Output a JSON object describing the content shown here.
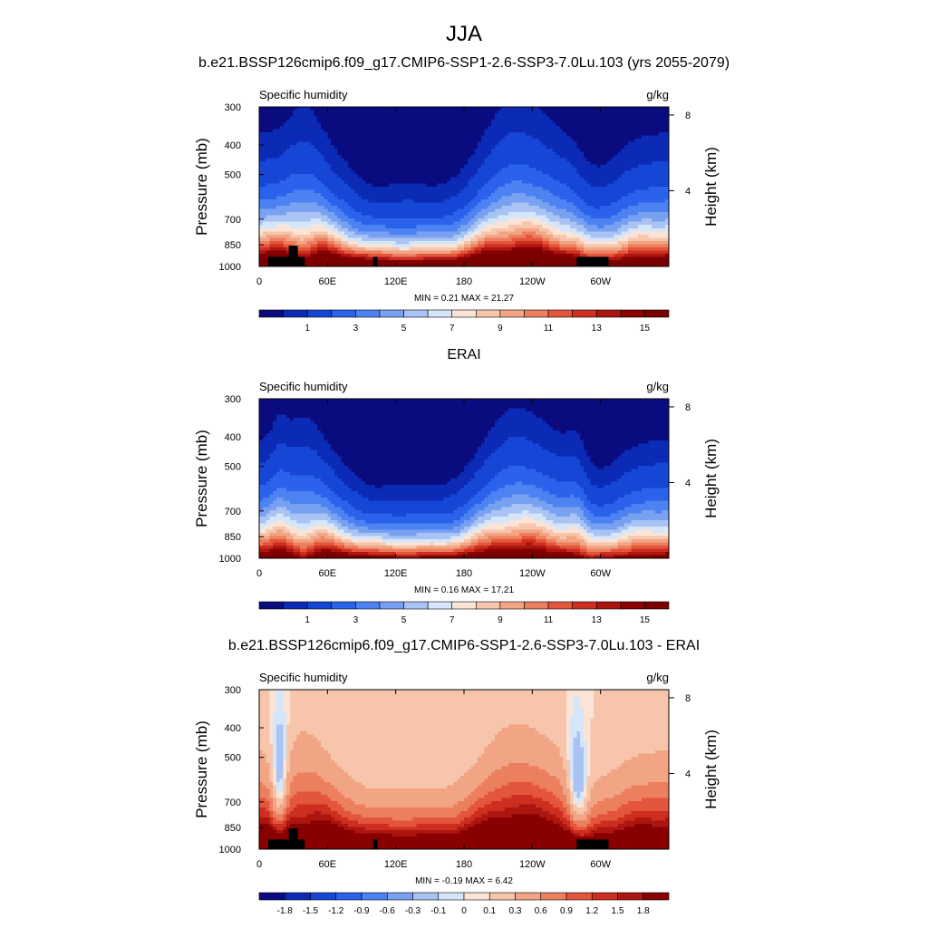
{
  "figure": {
    "title": "JJA",
    "colors": {
      "black": "#000000",
      "topography": "#000000"
    }
  },
  "chart_data": [
    {
      "type": "heatmap",
      "title": "b.e21.BSSP126cmip6.f09_g17.CMIP6-SSP1-2.6-SSP3-7.0Lu.103 (yrs 2055-2079)",
      "left_string": "Specific humidity",
      "right_string": "g/kg",
      "ylabel": "Pressure (mb)",
      "y2label": "Height (km)",
      "x_ticks": [
        "0",
        "60E",
        "120E",
        "180",
        "120W",
        "60W"
      ],
      "x_tick_values": [
        0,
        60,
        120,
        180,
        240,
        300
      ],
      "xlim": [
        0,
        360
      ],
      "y_ticks": [
        "300",
        "400",
        "500",
        "700",
        "850",
        "1000"
      ],
      "y_tick_values": [
        300,
        400,
        500,
        700,
        850,
        1000
      ],
      "ylim": [
        300,
        1000
      ],
      "y_scale": "log-pressure",
      "y2_ticks": [
        "8",
        "4"
      ],
      "y2_tick_values": [
        8,
        4
      ],
      "stats": "MIN =   0.21  MAX =  21.27",
      "min": 0.21,
      "max": 21.27,
      "levels": [
        0.5,
        1,
        2,
        3,
        4,
        5,
        6,
        7,
        8,
        9,
        10,
        11,
        12,
        13,
        14,
        15
      ],
      "colorbar_labels": [
        "1",
        "3",
        "5",
        "7",
        "9",
        "11",
        "13",
        "15"
      ],
      "palette": [
        "#0b0b80",
        "#0b2ab6",
        "#1546d6",
        "#2a62ec",
        "#4d82f2",
        "#79a1f2",
        "#a9c3f4",
        "#d6e6fa",
        "#fbe4d6",
        "#f6c5ac",
        "#f2a584",
        "#ec7f5e",
        "#e3563b",
        "#cd2e1f",
        "#ad1510",
        "#880000",
        "#7a0000"
      ],
      "topography": true
    },
    {
      "type": "heatmap",
      "title": "ERAI",
      "left_string": "Specific humidity",
      "right_string": "g/kg",
      "ylabel": "Pressure (mb)",
      "y2label": "Height (km)",
      "x_ticks": [
        "0",
        "60E",
        "120E",
        "180",
        "120W",
        "60W"
      ],
      "x_tick_values": [
        0,
        60,
        120,
        180,
        240,
        300
      ],
      "xlim": [
        0,
        360
      ],
      "y_ticks": [
        "300",
        "400",
        "500",
        "700",
        "850",
        "1000"
      ],
      "y_tick_values": [
        300,
        400,
        500,
        700,
        850,
        1000
      ],
      "ylim": [
        300,
        1000
      ],
      "y_scale": "log-pressure",
      "y2_ticks": [
        "8",
        "4"
      ],
      "y2_tick_values": [
        8,
        4
      ],
      "stats": "MIN =   0.16  MAX =  17.21",
      "min": 0.16,
      "max": 17.21,
      "levels": [
        0.5,
        1,
        2,
        3,
        4,
        5,
        6,
        7,
        8,
        9,
        10,
        11,
        12,
        13,
        14,
        15
      ],
      "colorbar_labels": [
        "1",
        "3",
        "5",
        "7",
        "9",
        "11",
        "13",
        "15"
      ],
      "palette": [
        "#0b0b80",
        "#0b2ab6",
        "#1546d6",
        "#2a62ec",
        "#4d82f2",
        "#79a1f2",
        "#a9c3f4",
        "#d6e6fa",
        "#fbe4d6",
        "#f6c5ac",
        "#f2a584",
        "#ec7f5e",
        "#e3563b",
        "#cd2e1f",
        "#ad1510",
        "#880000",
        "#7a0000"
      ],
      "topography": false
    },
    {
      "type": "heatmap",
      "title": "b.e21.BSSP126cmip6.f09_g17.CMIP6-SSP1-2.6-SSP3-7.0Lu.103 - ERAI",
      "left_string": "Specific humidity",
      "right_string": "g/kg",
      "ylabel": "Pressure (mb)",
      "y2label": "Height (km)",
      "x_ticks": [
        "0",
        "60E",
        "120E",
        "180",
        "120W",
        "60W"
      ],
      "x_tick_values": [
        0,
        60,
        120,
        180,
        240,
        300
      ],
      "xlim": [
        0,
        360
      ],
      "y_ticks": [
        "300",
        "400",
        "500",
        "700",
        "850",
        "1000"
      ],
      "y_tick_values": [
        300,
        400,
        500,
        700,
        850,
        1000
      ],
      "ylim": [
        300,
        1000
      ],
      "y_scale": "log-pressure",
      "y2_ticks": [
        "8",
        "4"
      ],
      "y2_tick_values": [
        8,
        4
      ],
      "stats": "MIN =  -0.19  MAX =   6.42",
      "min": -0.19,
      "max": 6.42,
      "levels": [
        -1.8,
        -1.5,
        -1.2,
        -0.9,
        -0.6,
        -0.3,
        -0.1,
        0,
        0.1,
        0.3,
        0.6,
        0.9,
        1.2,
        1.5,
        1.8
      ],
      "colorbar_labels": [
        "-1.8",
        "-1.5",
        "-1.2",
        "-0.9",
        "-0.6",
        "-0.3",
        "-0.1",
        "0",
        "0.1",
        "0.3",
        "0.6",
        "0.9",
        "1.2",
        "1.5",
        "1.8"
      ],
      "palette": [
        "#0b0b80",
        "#0b2ab6",
        "#1546d6",
        "#2a62ec",
        "#4d82f2",
        "#79a1f2",
        "#a9c3f4",
        "#d6e6fa",
        "#fbe4d6",
        "#f6c5ac",
        "#f2a584",
        "#ec7f5e",
        "#e3563b",
        "#cd2e1f",
        "#ad1510",
        "#880000"
      ],
      "topography": true
    }
  ]
}
